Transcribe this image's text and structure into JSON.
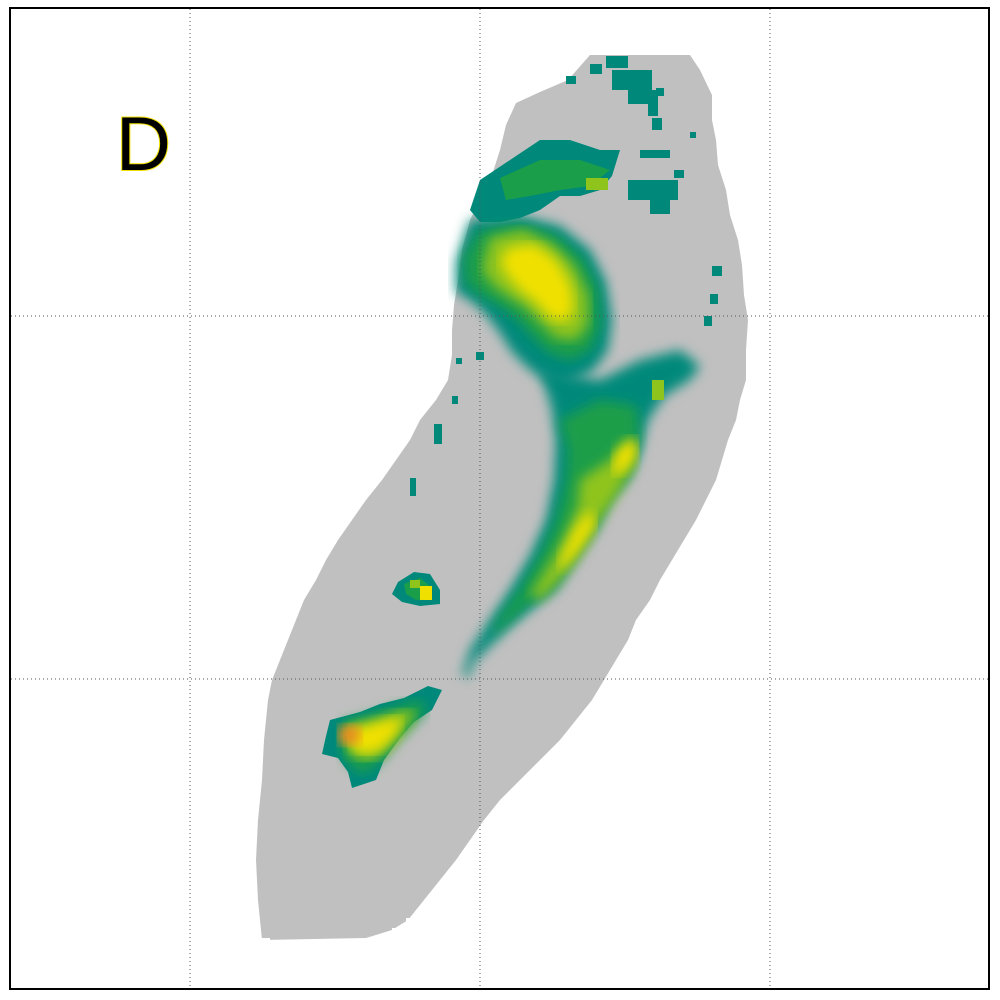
{
  "panel": {
    "label": "D"
  },
  "colors": {
    "land": "#c0c0c0",
    "background": "#ffffff",
    "frame": "#000000",
    "gridline": "#555555",
    "scale_low": "#00897a",
    "scale_mid_low": "#1a9e4a",
    "scale_mid": "#8fc41c",
    "scale_high": "#f0e000",
    "scale_max": "#f08a20"
  },
  "grid": {
    "dotted": true,
    "vertical_lines": 3,
    "horizontal_lines": 2
  }
}
